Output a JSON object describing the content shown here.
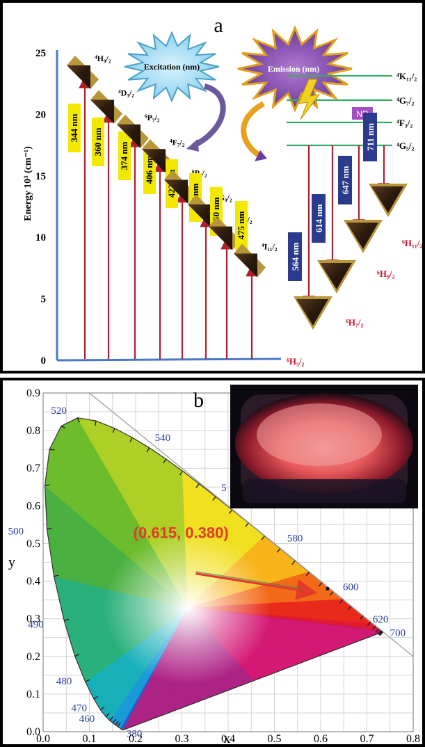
{
  "panel_a": {
    "label": "a",
    "ylabel": "Energy 10³ (cm⁻¹)",
    "yticks": [
      "25",
      "20",
      "15",
      "10",
      "5",
      "0"
    ],
    "excitation_label": "Excitation (nm)",
    "emission_label": "Emission (nm)",
    "nr_label": "NR",
    "ground_state": "⁶H₅/₂",
    "excitation_levels": [
      {
        "state": "⁴H₉/₂",
        "wavelength": "344 nm"
      },
      {
        "state": "⁴D₃/₂",
        "wavelength": "360 nm"
      },
      {
        "state": "⁶P₇/₂",
        "wavelength": "374 nm"
      },
      {
        "state": "⁴F₇/₂",
        "wavelength": "406 nm"
      },
      {
        "state": "⁶P₅/₂",
        "wavelength": "422 nm"
      },
      {
        "state": "⁴G₉/₂",
        "wavelength": "437 nm"
      },
      {
        "state": "⁴I₁₃/₂",
        "wavelength": "460 nm"
      },
      {
        "state": "⁴I₁₁/₂",
        "wavelength": "475 nm"
      }
    ],
    "upper_levels": [
      "⁴K₁₁/₂",
      "⁴G₇/₂",
      "⁴F₃/₂",
      "⁴G₅/₂"
    ],
    "emissions": [
      {
        "wavelength": "564 nm",
        "target": "⁶H₇/₂"
      },
      {
        "wavelength": "614 nm",
        "target": "⁶H₉/₂"
      },
      {
        "wavelength": "647 nm",
        "target": ""
      },
      {
        "wavelength": "711 nm",
        "target": "⁶H₁₁/₂"
      }
    ],
    "colors": {
      "arrow": "#b0202a",
      "label_bg": "#f2e800",
      "emission_label_bg": "#2a3a8c",
      "axis": "#4a78c8",
      "level_line": "#3aaa6a",
      "state_red": "#c8102e"
    }
  },
  "panel_b": {
    "label": "b",
    "chart_data": {
      "type": "scatter",
      "title": "",
      "xlabel": "x",
      "ylabel": "y",
      "xlim": [
        0.0,
        0.8
      ],
      "ylim": [
        0.0,
        0.9
      ],
      "xticks": [
        "0.0",
        "0.1",
        "0.2",
        "0.3",
        "0.4",
        "0.5",
        "0.6",
        "0.7",
        "0.8"
      ],
      "yticks": [
        "0.0",
        "0.1",
        "0.2",
        "0.3",
        "0.4",
        "0.5",
        "0.6",
        "0.7",
        "0.8",
        "0.9"
      ],
      "grid": true,
      "point": {
        "x": 0.615,
        "y": 0.38,
        "label": "(0.615, 0.380)"
      },
      "wavelength_labels": [
        {
          "text": "380",
          "x": 0.1741,
          "y": 0.005
        },
        {
          "text": "460",
          "x": 0.144,
          "y": 0.0297
        },
        {
          "text": "470",
          "x": 0.1241,
          "y": 0.0578
        },
        {
          "text": "480",
          "x": 0.0913,
          "y": 0.1327
        },
        {
          "text": "490",
          "x": 0.0454,
          "y": 0.295
        },
        {
          "text": "500",
          "x": 0.0082,
          "y": 0.5384
        },
        {
          "text": "520",
          "x": 0.0743,
          "y": 0.8338
        },
        {
          "text": "540",
          "x": 0.2296,
          "y": 0.7543
        },
        {
          "text": "5",
          "x": 0.3731,
          "y": 0.6245
        },
        {
          "text": "580",
          "x": 0.5125,
          "y": 0.4866
        },
        {
          "text": "600",
          "x": 0.627,
          "y": 0.3725
        },
        {
          "text": "620",
          "x": 0.6915,
          "y": 0.3083
        },
        {
          "text": "700",
          "x": 0.7347,
          "y": 0.2653
        }
      ],
      "locus": [
        [
          0.1741,
          0.005
        ],
        [
          0.1738,
          0.0049
        ],
        [
          0.1736,
          0.0049
        ],
        [
          0.1733,
          0.0048
        ],
        [
          0.173,
          0.0048
        ],
        [
          0.1726,
          0.0048
        ],
        [
          0.1721,
          0.0048
        ],
        [
          0.1714,
          0.0051
        ],
        [
          0.1703,
          0.0058
        ],
        [
          0.1689,
          0.0069
        ],
        [
          0.1669,
          0.0086
        ],
        [
          0.1644,
          0.0109
        ],
        [
          0.1611,
          0.0138
        ],
        [
          0.1566,
          0.0177
        ],
        [
          0.151,
          0.0227
        ],
        [
          0.144,
          0.0297
        ],
        [
          0.1355,
          0.0399
        ],
        [
          0.1241,
          0.0578
        ],
        [
          0.1096,
          0.0868
        ],
        [
          0.0913,
          0.1327
        ],
        [
          0.0687,
          0.2007
        ],
        [
          0.0454,
          0.295
        ],
        [
          0.0235,
          0.4127
        ],
        [
          0.0082,
          0.5384
        ],
        [
          0.0039,
          0.6548
        ],
        [
          0.0139,
          0.7502
        ],
        [
          0.0389,
          0.812
        ],
        [
          0.0743,
          0.8338
        ],
        [
          0.1142,
          0.8262
        ],
        [
          0.1547,
          0.8059
        ],
        [
          0.1929,
          0.7816
        ],
        [
          0.2296,
          0.7543
        ],
        [
          0.2658,
          0.7243
        ],
        [
          0.3016,
          0.6923
        ],
        [
          0.3373,
          0.6589
        ],
        [
          0.3731,
          0.6245
        ],
        [
          0.4087,
          0.5896
        ],
        [
          0.4441,
          0.5547
        ],
        [
          0.4788,
          0.5202
        ],
        [
          0.5125,
          0.4866
        ],
        [
          0.5448,
          0.4544
        ],
        [
          0.5752,
          0.4242
        ],
        [
          0.6029,
          0.3965
        ],
        [
          0.627,
          0.3725
        ],
        [
          0.6482,
          0.3514
        ],
        [
          0.6658,
          0.334
        ],
        [
          0.6801,
          0.3197
        ],
        [
          0.6915,
          0.3083
        ],
        [
          0.7006,
          0.2993
        ],
        [
          0.7079,
          0.292
        ],
        [
          0.714,
          0.2859
        ],
        [
          0.719,
          0.2809
        ],
        [
          0.723,
          0.277
        ],
        [
          0.726,
          0.274
        ],
        [
          0.7283,
          0.2717
        ],
        [
          0.73,
          0.27
        ],
        [
          0.7311,
          0.2689
        ],
        [
          0.732,
          0.268
        ],
        [
          0.7327,
          0.2673
        ],
        [
          0.7334,
          0.2666
        ],
        [
          0.734,
          0.266
        ],
        [
          0.7344,
          0.2656
        ],
        [
          0.7346,
          0.2654
        ],
        [
          0.7347,
          0.2653
        ]
      ]
    },
    "colors": {
      "annotation": "#e23a2a",
      "tick_label": "#2c3d9c"
    }
  }
}
